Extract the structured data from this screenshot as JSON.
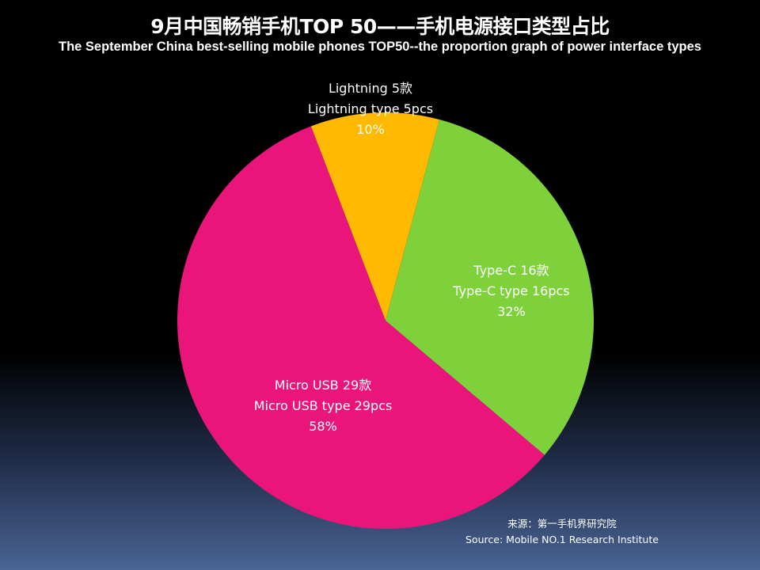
{
  "title": "9月中国畅销手机TOP 50——手机电源接口类型占比",
  "subtitle": "The September China best-selling mobile phones TOP50--the proportion graph of power interface types",
  "source": {
    "cn": "来源：第一手机界研究院",
    "en": "Source: Mobile NO.1 Research Institute"
  },
  "chart_data": {
    "type": "pie",
    "title": "9月中国畅销手机TOP 50——手机电源接口类型占比",
    "subtitle": "The September China best-selling mobile phones TOP50--the proportion graph of power interface types",
    "slices": [
      {
        "key": "lightning",
        "name": "Lightning",
        "value": 5,
        "percent": 10,
        "color": "#ffb900",
        "label_cn": "Lightning 5款",
        "label_en": "Lightning type 5pcs",
        "label_pct": "10%"
      },
      {
        "key": "typec",
        "name": "Type-C",
        "value": 16,
        "percent": 32,
        "color": "#7fd13b",
        "label_cn": "Type-C 16款",
        "label_en": "Type-C type 16pcs",
        "label_pct": "32%"
      },
      {
        "key": "microusb",
        "name": "Micro USB",
        "value": 29,
        "percent": 58,
        "color": "#ea157a",
        "label_cn": "Micro USB 29款",
        "label_en": "Micro USB type 29pcs",
        "label_pct": "58%"
      }
    ]
  }
}
